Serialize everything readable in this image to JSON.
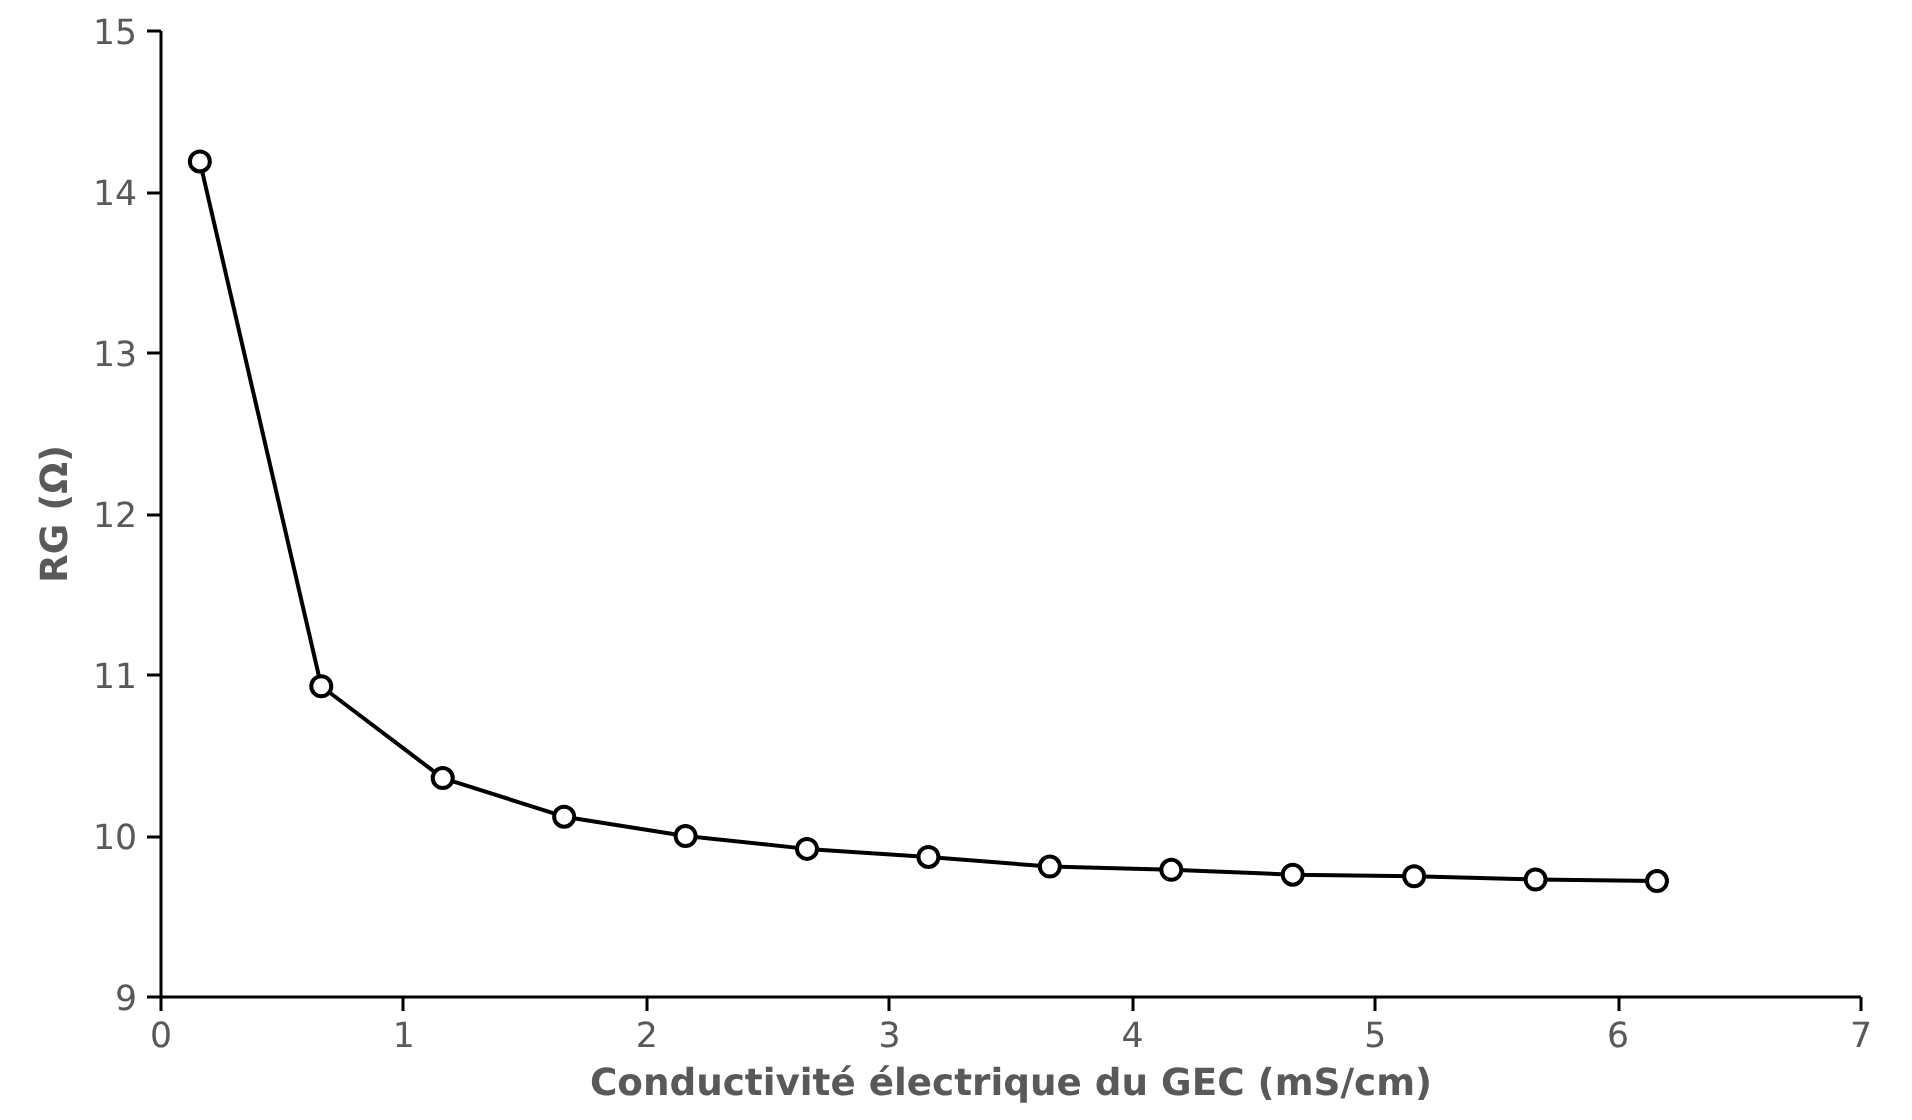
{
  "chart_data": {
    "type": "line",
    "xlabel": "Conductivité électrique du GEC (mS/cm)",
    "ylabel": "RG (Ω)",
    "x": [
      0.16,
      0.66,
      1.16,
      1.66,
      2.16,
      2.66,
      3.16,
      3.66,
      4.16,
      4.66,
      5.16,
      5.66,
      6.16
    ],
    "series": [
      {
        "color": "#000000",
        "values": [
          14.19,
          10.93,
          10.36,
          10.12,
          10.0,
          9.92,
          9.87,
          9.81,
          9.79,
          9.76,
          9.75,
          9.73,
          9.72
        ]
      }
    ],
    "xlim": [
      0,
      7
    ],
    "ylim": [
      9,
      15
    ],
    "xticks": [
      0,
      1,
      2,
      3,
      4,
      5,
      6,
      7
    ],
    "yticks": [
      9,
      10,
      11,
      12,
      13,
      14,
      15
    ],
    "grid": false,
    "marker": "circle",
    "line_style": "solid"
  }
}
